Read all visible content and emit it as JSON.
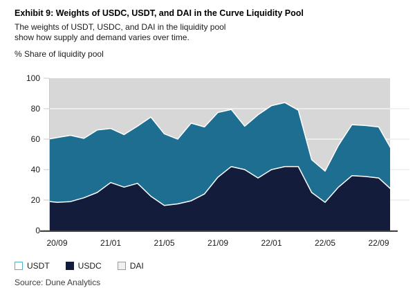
{
  "header": {
    "title": "Exhibit 9: Weights of USDC, USDT, and DAI in the Curve Liquidity Pool",
    "subtitle_line1": "The weights of USDT, USDC, and DAI in the liquidity pool",
    "subtitle_line2": "show how supply and demand varies over time.",
    "unit_label": "% Share of liquidity pool"
  },
  "source": "Source: Dune Analytics",
  "colors": {
    "usdc_navy": "#131d3b",
    "usdt_teal": "#1d6e91",
    "dai_gray": "#d7d7d7",
    "boundary_white": "#ffffff",
    "axis_baseline": "#3d3d3d",
    "tick_gray": "#c9c9c9",
    "right_stub_gray": "#e3e3e3",
    "tick_label": "#1a1a1a"
  },
  "legend": {
    "items": [
      {
        "label": "USDT",
        "swatch_fill": "#ffffff",
        "swatch_border": "#4fb2c9"
      },
      {
        "label": "USDC",
        "swatch_fill": "#131d3b",
        "swatch_border": "#131d3b"
      },
      {
        "label": "DAI",
        "swatch_fill": "#f0f0f0",
        "swatch_border": "#9a9a9a"
      }
    ]
  },
  "chart_data": {
    "type": "area",
    "stacked": true,
    "title": "Exhibit 9: Weights of USDC, USDT, and DAI in the Curve Liquidity Pool",
    "xlabel": "",
    "ylabel": "% Share of liquidity pool",
    "ylim": [
      0,
      100
    ],
    "y_ticks": [
      0,
      20,
      40,
      60,
      80,
      100
    ],
    "grid": "horizontal-white-on-top-band",
    "legend_position": "bottom",
    "months": [
      "20/08",
      "20/09",
      "20/10",
      "20/11",
      "20/12",
      "21/01",
      "21/02",
      "21/03",
      "21/04",
      "21/05",
      "21/06",
      "21/07",
      "21/08",
      "21/09",
      "21/10",
      "21/11",
      "21/12",
      "22/01",
      "22/02",
      "22/03",
      "22/04",
      "22/05",
      "22/06",
      "22/07",
      "22/08",
      "22/09",
      "22/10"
    ],
    "x_tick_indices": [
      1,
      5,
      9,
      13,
      17,
      21,
      25
    ],
    "x_tick_labels": [
      "20/09",
      "21/01",
      "21/05",
      "21/09",
      "22/01",
      "22/05",
      "22/09"
    ],
    "series": [
      {
        "name": "USDT",
        "stack_order": 2,
        "color": "#1d6e91",
        "values": [
          40,
          42.5,
          43.5,
          39,
          41,
          35.5,
          34.5,
          37.5,
          52,
          47,
          42.5,
          51,
          44,
          42.5,
          37.5,
          28.5,
          41.5,
          42,
          42,
          37,
          21.5,
          20.5,
          27.5,
          33.5,
          33.5,
          33.5,
          26
        ]
      },
      {
        "name": "USDC",
        "stack_order": 1,
        "color": "#131d3b",
        "values": [
          19.5,
          18.5,
          19,
          21.5,
          25,
          31.5,
          28.5,
          31,
          22.5,
          16.5,
          17.5,
          19.5,
          24,
          35,
          42,
          40,
          34.5,
          40,
          42,
          42,
          25,
          18.5,
          28.5,
          36,
          35.5,
          34.5,
          26.5
        ]
      },
      {
        "name": "DAI",
        "stack_order": 3,
        "color": "#d7d7d7",
        "values": [
          40.5,
          39,
          37.5,
          39.5,
          34,
          33,
          37,
          31.5,
          25.5,
          36.5,
          40,
          29.5,
          32,
          22.5,
          20.5,
          31.5,
          24,
          18,
          16,
          21,
          53.5,
          61,
          44,
          30.5,
          31,
          32,
          47.5
        ]
      }
    ]
  }
}
